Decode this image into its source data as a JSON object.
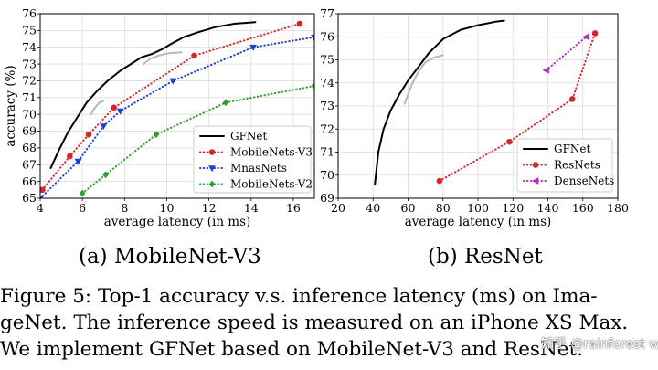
{
  "chart_data": [
    {
      "type": "line",
      "xlabel": "average latency (in ms)",
      "ylabel": "accuracy (%)",
      "xlim": [
        4,
        17
      ],
      "ylim": [
        65,
        76
      ],
      "xticks": [
        4,
        6,
        8,
        10,
        12,
        14,
        16
      ],
      "yticks": [
        65,
        66,
        67,
        68,
        69,
        70,
        71,
        72,
        73,
        74,
        75,
        76
      ],
      "legend": "lower-right",
      "grid": true,
      "series": [
        {
          "name": "GFNet",
          "color": "#000000",
          "style": "solid",
          "marker": "none",
          "x": [
            4.5,
            4.9,
            5.3,
            5.8,
            6.2,
            6.7,
            7.2,
            7.8,
            8.3,
            8.8,
            9.3,
            9.8,
            10.2,
            10.8,
            11.5,
            12.3,
            13.2,
            14.2
          ],
          "y": [
            66.8,
            67.9,
            68.9,
            69.9,
            70.7,
            71.4,
            72.0,
            72.6,
            73.0,
            73.4,
            73.6,
            73.9,
            74.2,
            74.6,
            74.9,
            75.2,
            75.4,
            75.5
          ]
        },
        {
          "name": "",
          "color": "#b8b8b8",
          "style": "solid",
          "marker": "none",
          "x": [
            6.4,
            6.6,
            6.8,
            7.0
          ],
          "y": [
            70.0,
            70.4,
            70.7,
            70.8
          ]
        },
        {
          "name": "",
          "color": "#b8b8b8",
          "style": "solid",
          "marker": "none",
          "x": [
            8.9,
            9.2,
            9.6,
            10.1,
            10.7
          ],
          "y": [
            73.0,
            73.3,
            73.5,
            73.65,
            73.7
          ]
        },
        {
          "name": "MobileNets-V3",
          "color": "#d62728",
          "style": "dotted",
          "marker": "circle",
          "x": [
            4.1,
            5.4,
            6.3,
            7.5,
            11.3,
            16.3
          ],
          "y": [
            65.5,
            67.5,
            68.8,
            70.4,
            73.5,
            75.4
          ]
        },
        {
          "name": "MnasNets",
          "color": "#1f3fcf",
          "style": "dotted",
          "marker": "triangle-down",
          "x": [
            4.0,
            5.8,
            7.0,
            7.8,
            10.3,
            14.1,
            17.0
          ],
          "y": [
            65.0,
            67.2,
            69.3,
            70.2,
            72.0,
            74.0,
            74.6
          ]
        },
        {
          "name": "MobileNets-V2",
          "color": "#2ca02c",
          "style": "dotted",
          "marker": "diamond",
          "x": [
            6.0,
            7.1,
            9.5,
            12.8,
            17.0
          ],
          "y": [
            65.3,
            66.4,
            68.8,
            70.7,
            71.7
          ]
        }
      ]
    },
    {
      "type": "line",
      "xlabel": "average latency (in ms)",
      "ylabel": "",
      "xlim": [
        20,
        180
      ],
      "ylim": [
        69,
        77
      ],
      "xticks": [
        20,
        40,
        60,
        80,
        100,
        120,
        140,
        160,
        180
      ],
      "yticks": [
        69,
        70,
        71,
        72,
        73,
        74,
        75,
        76,
        77
      ],
      "legend": "lower-right",
      "grid": true,
      "series": [
        {
          "name": "GFNet",
          "color": "#000000",
          "style": "solid",
          "marker": "none",
          "x": [
            41,
            43,
            46,
            50,
            55,
            60,
            66,
            72,
            80,
            90,
            100,
            110,
            115
          ],
          "y": [
            69.6,
            71.0,
            72.0,
            72.8,
            73.5,
            74.1,
            74.7,
            75.3,
            75.9,
            76.3,
            76.5,
            76.65,
            76.7
          ]
        },
        {
          "name": "",
          "color": "#b8b8b8",
          "style": "solid",
          "marker": "none",
          "x": [
            58,
            62,
            66,
            70,
            75,
            80
          ],
          "y": [
            73.1,
            73.9,
            74.5,
            74.9,
            75.1,
            75.2
          ]
        },
        {
          "name": "ResNets",
          "color": "#d62728",
          "style": "dotted",
          "marker": "circle",
          "x": [
            78,
            118,
            154,
            167
          ],
          "y": [
            69.75,
            71.45,
            73.3,
            76.15
          ]
        },
        {
          "name": "DenseNets",
          "color": "#b22ec7",
          "style": "dotted",
          "marker": "triangle-left",
          "x": [
            139,
            162
          ],
          "y": [
            74.55,
            76.0
          ]
        }
      ]
    }
  ],
  "subcaptions": {
    "a": "(a) MobileNet-V3",
    "b": "(b) ResNet"
  },
  "caption": {
    "line1": "Figure 5:   Top-1 accuracy v.s.  inference latency (ms) on Ima-",
    "line2": "geNet. The inference speed is measured on an iPhone XS Max.",
    "line3": "We implement GFNet based on MobileNet-V3 and ResNet."
  },
  "watermark": "知乎 @rainforest wang"
}
